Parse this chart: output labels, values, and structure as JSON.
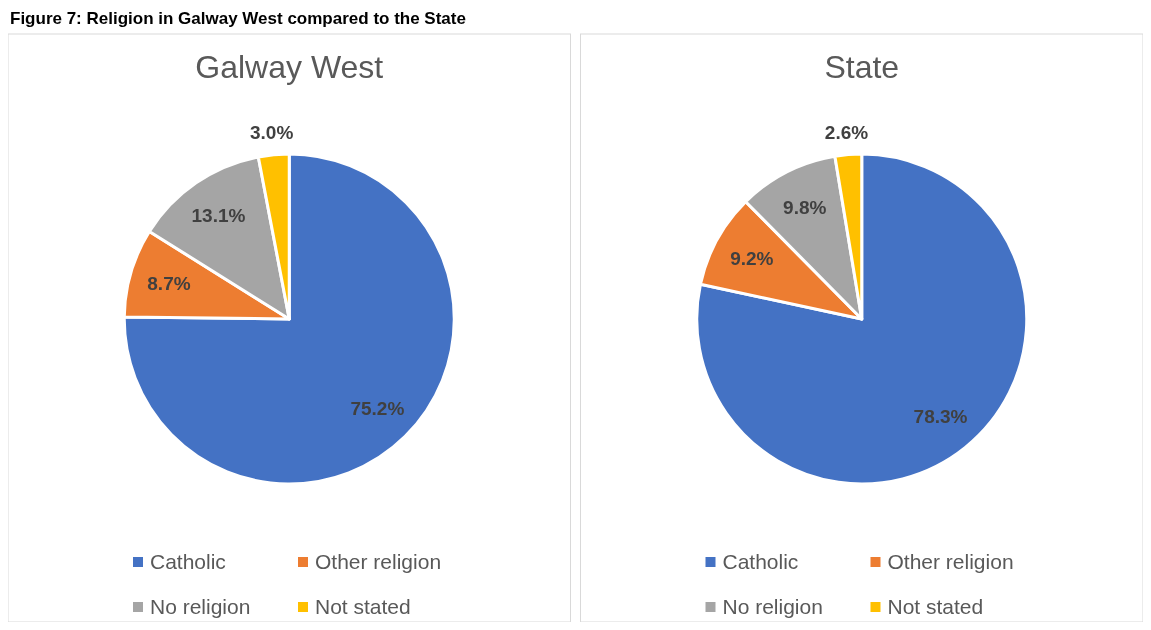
{
  "chart_data": [
    {
      "type": "pie",
      "title": "Galway West",
      "categories": [
        "Catholic",
        "Other religion",
        "No religion",
        "Not stated"
      ],
      "values": [
        75.2,
        8.7,
        13.1,
        3.0
      ],
      "colors": [
        "#4472c4",
        "#ed7d31",
        "#a5a5a5",
        "#ffc000"
      ],
      "value_labels": [
        "75.2%",
        "8.7%",
        "13.1%",
        "3.0%"
      ],
      "legend": "bottom",
      "annotations": [
        "Figure 7: Religion in Galway West compared to the State"
      ]
    },
    {
      "type": "pie",
      "title": "State",
      "categories": [
        "Catholic",
        "Other religion",
        "No religion",
        "Not stated"
      ],
      "values": [
        78.3,
        9.2,
        9.8,
        2.6
      ],
      "colors": [
        "#4472c4",
        "#ed7d31",
        "#a5a5a5",
        "#ffc000"
      ],
      "value_labels": [
        "78.3%",
        "9.2%",
        "9.8%",
        "2.6%"
      ],
      "legend": "bottom"
    }
  ]
}
